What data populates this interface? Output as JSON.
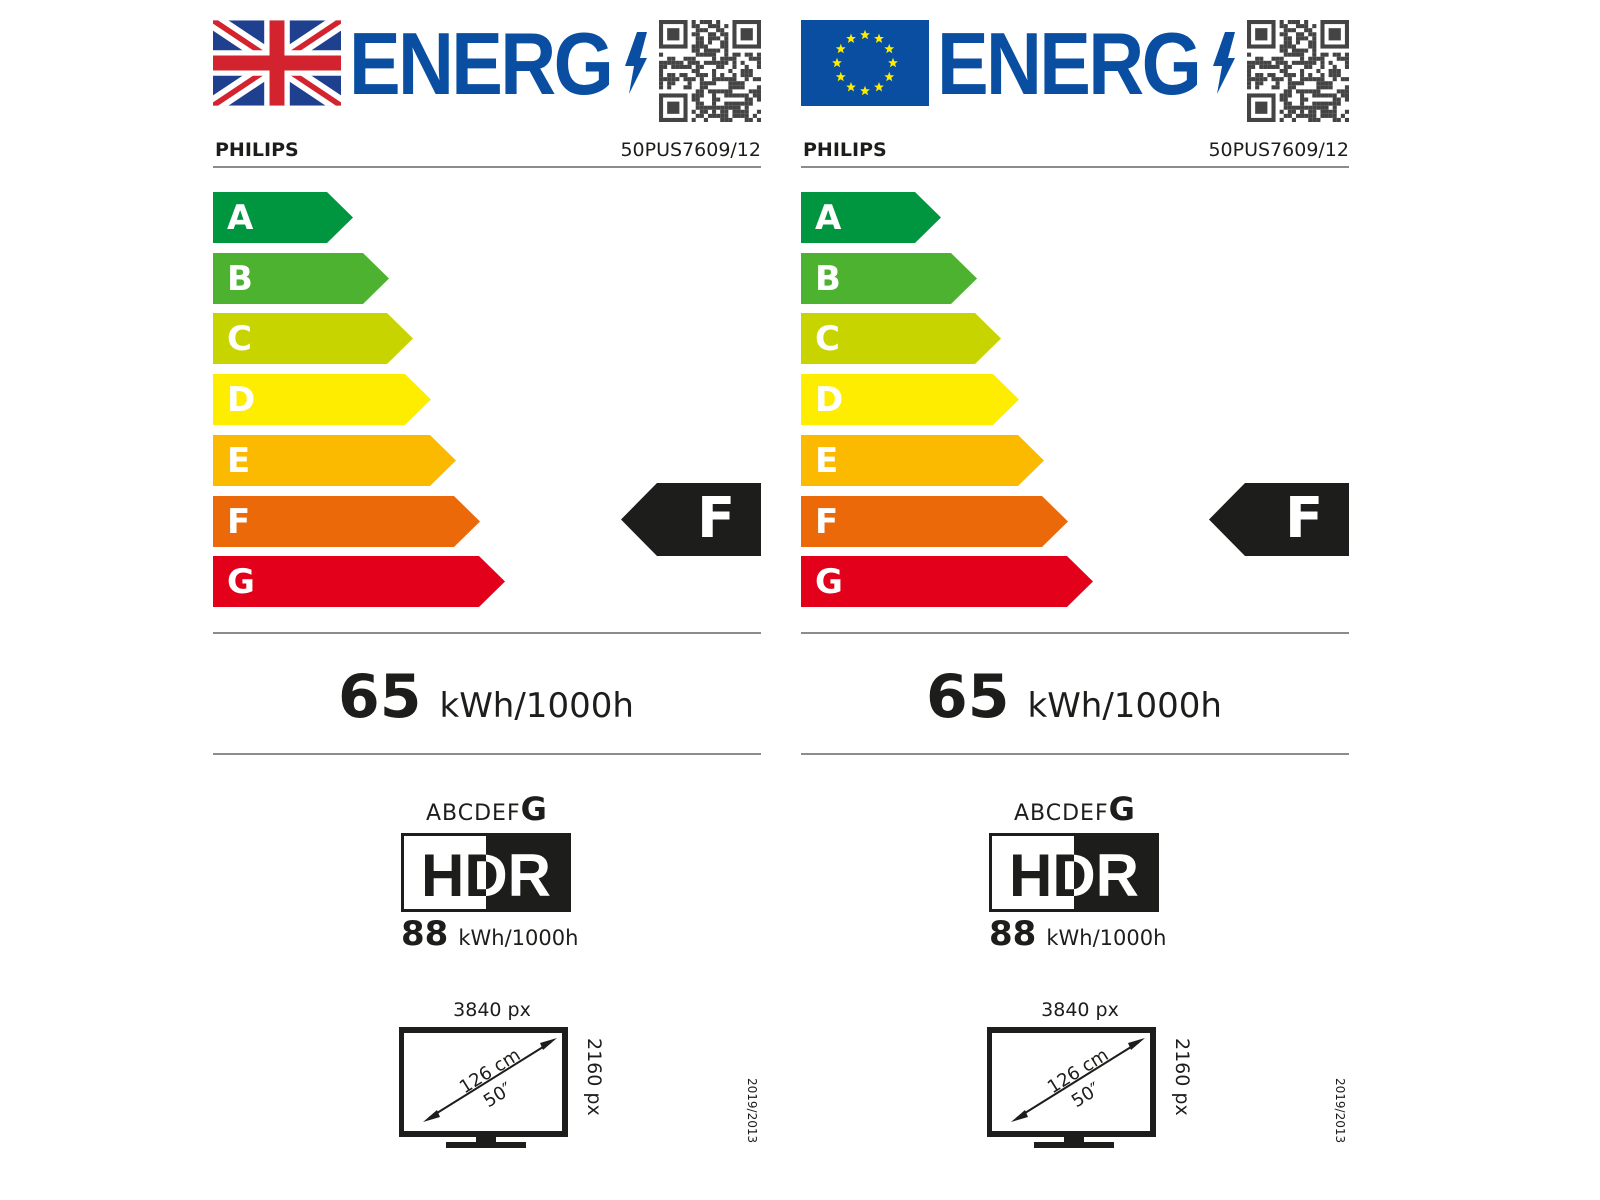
{
  "labels": [
    {
      "flag": "uk-flag",
      "logo_text": "ENERG",
      "brand": "PHILIPS",
      "model": "50PUS7609/12",
      "classes": [
        "A",
        "B",
        "C",
        "D",
        "E",
        "F",
        "G"
      ],
      "class_colors": [
        "#00963f",
        "#4db22f",
        "#c8d400",
        "#ffed00",
        "#fbba00",
        "#eb6909",
        "#e2001a"
      ],
      "rating": "F",
      "sdr_energy": "65",
      "energy_unit": "kWh/1000h",
      "hdr_scale_prefix": "ABCDEF",
      "hdr_class": "G",
      "hdr_logo": "HDR",
      "hdr_energy": "88",
      "hdr_energy_unit": "kWh/1000h",
      "horizontal_resolution": "3840 px",
      "vertical_resolution": "2160 px",
      "diagonal_cm": "126 cm",
      "diagonal_inch": "50″",
      "regulation": "2019/2013"
    },
    {
      "flag": "eu-flag",
      "logo_text": "ENERG",
      "brand": "PHILIPS",
      "model": "50PUS7609/12",
      "classes": [
        "A",
        "B",
        "C",
        "D",
        "E",
        "F",
        "G"
      ],
      "class_colors": [
        "#00963f",
        "#4db22f",
        "#c8d400",
        "#ffed00",
        "#fbba00",
        "#eb6909",
        "#e2001a"
      ],
      "rating": "F",
      "sdr_energy": "65",
      "energy_unit": "kWh/1000h",
      "hdr_scale_prefix": "ABCDEF",
      "hdr_class": "G",
      "hdr_logo": "HDR",
      "hdr_energy": "88",
      "hdr_energy_unit": "kWh/1000h",
      "horizontal_resolution": "3840 px",
      "vertical_resolution": "2160 px",
      "diagonal_cm": "126 cm",
      "diagonal_inch": "50″",
      "regulation": "2019/2013"
    }
  ],
  "colors": {
    "logo_blue": "#0a4ea2",
    "dark": "#1d1d1b",
    "rule": "#8c8c8c"
  }
}
